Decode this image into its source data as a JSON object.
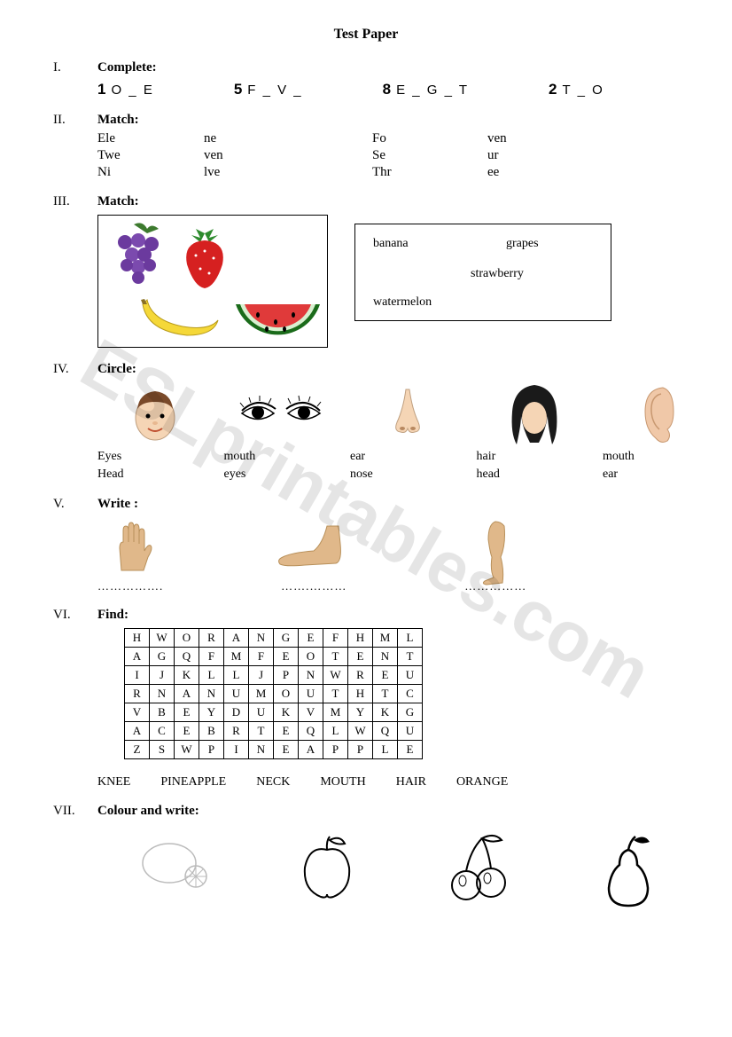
{
  "title": "Test Paper",
  "watermark": "ESLprintables.com",
  "sections": {
    "s1": {
      "roman": "I.",
      "heading": "Complete:",
      "items": [
        {
          "num": "1",
          "text": "O _ E"
        },
        {
          "num": "5",
          "text": "F _ V _"
        },
        {
          "num": "8",
          "text": "E _ G _ T"
        },
        {
          "num": "2",
          "text": "T _ O"
        }
      ]
    },
    "s2": {
      "roman": "II.",
      "heading": "Match:",
      "col1": [
        "Ele",
        "Twe",
        "Ni"
      ],
      "col2": [
        "ne",
        "ven",
        "lve"
      ],
      "col3": [
        "Fo",
        "Se",
        "Thr"
      ],
      "col4": [
        "ven",
        "ur",
        "ee"
      ]
    },
    "s3": {
      "roman": "III.",
      "heading": "Match:",
      "words": {
        "w1": "banana",
        "w2": "grapes",
        "w3": "strawberry",
        "w4": "watermelon"
      }
    },
    "s4": {
      "roman": "IV.",
      "heading": "Circle:",
      "items": [
        {
          "line1": "Eyes",
          "line2": "Head"
        },
        {
          "line1": "mouth",
          "line2": "eyes"
        },
        {
          "line1": "ear",
          "line2": "nose"
        },
        {
          "line1": "hair",
          "line2": "head"
        },
        {
          "line1": "mouth",
          "line2": "ear"
        }
      ]
    },
    "s5": {
      "roman": "V.",
      "heading": "Write :",
      "dotted": "…………….",
      "dotted2": "…….………",
      "dotted3": "……………"
    },
    "s6": {
      "roman": "VI.",
      "heading": "Find:",
      "grid": [
        [
          "H",
          "W",
          "O",
          "R",
          "A",
          "N",
          "G",
          "E",
          "F",
          "H",
          "M",
          "L"
        ],
        [
          "A",
          "G",
          "Q",
          "F",
          "M",
          "F",
          "E",
          "O",
          "T",
          "E",
          "N",
          "T"
        ],
        [
          "I",
          "J",
          "K",
          "L",
          "L",
          "J",
          "P",
          "N",
          "W",
          "R",
          "E",
          "U"
        ],
        [
          "R",
          "N",
          "A",
          "N",
          "U",
          "M",
          "O",
          "U",
          "T",
          "H",
          "T",
          "C"
        ],
        [
          "V",
          "B",
          "E",
          "Y",
          "D",
          "U",
          "K",
          "V",
          "M",
          "Y",
          "K",
          "G"
        ],
        [
          "A",
          "C",
          "E",
          "B",
          "R",
          "T",
          "E",
          "Q",
          "L",
          "W",
          "Q",
          "U"
        ],
        [
          "Z",
          "S",
          "W",
          "P",
          "I",
          "N",
          "E",
          "A",
          "P",
          "P",
          "L",
          "E"
        ]
      ],
      "words": [
        "KNEE",
        "PINEAPPLE",
        "NECK",
        "MOUTH",
        "HAIR",
        "ORANGE"
      ]
    },
    "s7": {
      "roman": "VII.",
      "heading": "Colour and write:"
    }
  },
  "colors": {
    "grape": "#6b3a9e",
    "grape_leaf": "#3d7a2e",
    "strawberry": "#d62020",
    "strawberry_leaf": "#2e8b2e",
    "banana": "#f5d838",
    "banana_shadow": "#b89b1a",
    "watermelon_rind": "#1a6b1a",
    "watermelon_flesh": "#e03a3a",
    "skin": "#f5d5b5",
    "skin_dark": "#e0b88a",
    "hair_brown": "#7a4a2a",
    "hair_black": "#1a1a1a",
    "ear": "#f0c8a8"
  }
}
